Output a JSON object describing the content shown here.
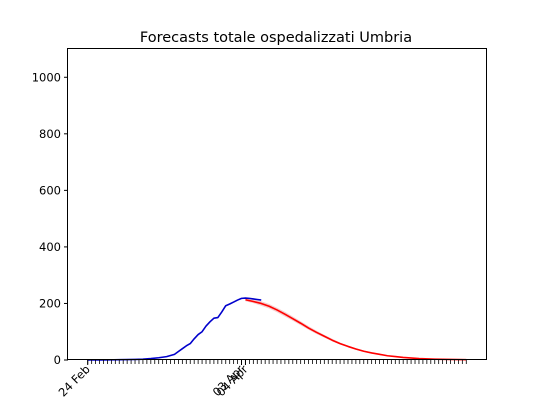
{
  "chart_data": {
    "type": "line",
    "title": "Forecasts totale ospedalizzati Umbria",
    "xlabel": "",
    "ylabel": "",
    "ylim": [
      0,
      1100
    ],
    "x_ticks_major": [
      {
        "label": "24 Feb",
        "day": 0
      },
      {
        "label": "03 Apr",
        "day": 39
      },
      {
        "label": "04 Apr",
        "day": 40
      }
    ],
    "y_ticks": [
      0,
      200,
      400,
      600,
      800,
      1000
    ],
    "grid": false,
    "series": [
      {
        "color": "#0000cc",
        "points": [
          [
            0,
            0
          ],
          [
            4,
            0
          ],
          [
            8,
            1
          ],
          [
            12,
            2
          ],
          [
            14,
            3
          ],
          [
            16,
            5
          ],
          [
            18,
            8
          ],
          [
            20,
            12
          ],
          [
            22,
            20
          ],
          [
            23,
            30
          ],
          [
            24,
            40
          ],
          [
            25,
            50
          ],
          [
            26,
            58
          ],
          [
            27,
            75
          ],
          [
            28,
            90
          ],
          [
            29,
            100
          ],
          [
            30,
            120
          ],
          [
            31,
            135
          ],
          [
            32,
            148
          ],
          [
            33,
            150
          ],
          [
            34,
            170
          ],
          [
            35,
            192
          ],
          [
            36,
            198
          ],
          [
            37,
            205
          ],
          [
            38,
            212
          ],
          [
            39,
            218
          ],
          [
            40,
            219
          ],
          [
            41,
            218
          ],
          [
            42,
            216
          ],
          [
            43,
            214
          ],
          [
            44,
            212
          ]
        ]
      },
      {
        "color": "#ff0000",
        "points": [
          [
            40,
            213
          ],
          [
            42,
            207
          ],
          [
            44,
            200
          ],
          [
            46,
            190
          ],
          [
            48,
            177
          ],
          [
            50,
            162
          ],
          [
            52,
            146
          ],
          [
            54,
            130
          ],
          [
            56,
            113
          ],
          [
            58,
            98
          ],
          [
            60,
            84
          ],
          [
            62,
            70
          ],
          [
            64,
            58
          ],
          [
            66,
            48
          ],
          [
            68,
            39
          ],
          [
            70,
            31
          ],
          [
            72,
            25
          ],
          [
            74,
            20
          ],
          [
            76,
            15
          ],
          [
            78,
            12
          ],
          [
            80,
            9
          ],
          [
            84,
            5
          ],
          [
            88,
            3
          ],
          [
            92,
            2
          ],
          [
            96,
            1
          ]
        ]
      }
    ],
    "band": {
      "color": "#f2c0c0",
      "upper": [
        [
          40,
          218
        ],
        [
          42,
          214
        ],
        [
          44,
          208
        ],
        [
          46,
          198
        ],
        [
          48,
          185
        ],
        [
          50,
          170
        ],
        [
          52,
          154
        ],
        [
          54,
          137
        ],
        [
          56,
          120
        ],
        [
          58,
          104
        ],
        [
          60,
          89
        ],
        [
          62,
          75
        ],
        [
          64,
          62
        ],
        [
          66,
          51
        ],
        [
          68,
          42
        ],
        [
          70,
          34
        ],
        [
          72,
          27
        ],
        [
          74,
          21
        ],
        [
          76,
          16
        ],
        [
          78,
          13
        ],
        [
          80,
          10
        ],
        [
          84,
          6
        ],
        [
          88,
          3
        ],
        [
          92,
          2
        ],
        [
          96,
          1
        ]
      ],
      "lower": [
        [
          40,
          208
        ],
        [
          42,
          201
        ],
        [
          44,
          192
        ],
        [
          46,
          182
        ],
        [
          48,
          169
        ],
        [
          50,
          154
        ],
        [
          52,
          139
        ],
        [
          54,
          123
        ],
        [
          56,
          107
        ],
        [
          58,
          92
        ],
        [
          60,
          79
        ],
        [
          62,
          66
        ],
        [
          64,
          55
        ],
        [
          66,
          45
        ],
        [
          68,
          36
        ],
        [
          70,
          29
        ],
        [
          72,
          23
        ],
        [
          74,
          18
        ],
        [
          76,
          14
        ],
        [
          78,
          11
        ],
        [
          80,
          8
        ],
        [
          84,
          4
        ],
        [
          88,
          2
        ],
        [
          92,
          1
        ],
        [
          96,
          0
        ]
      ]
    },
    "x_range": [
      -5,
      101
    ]
  }
}
